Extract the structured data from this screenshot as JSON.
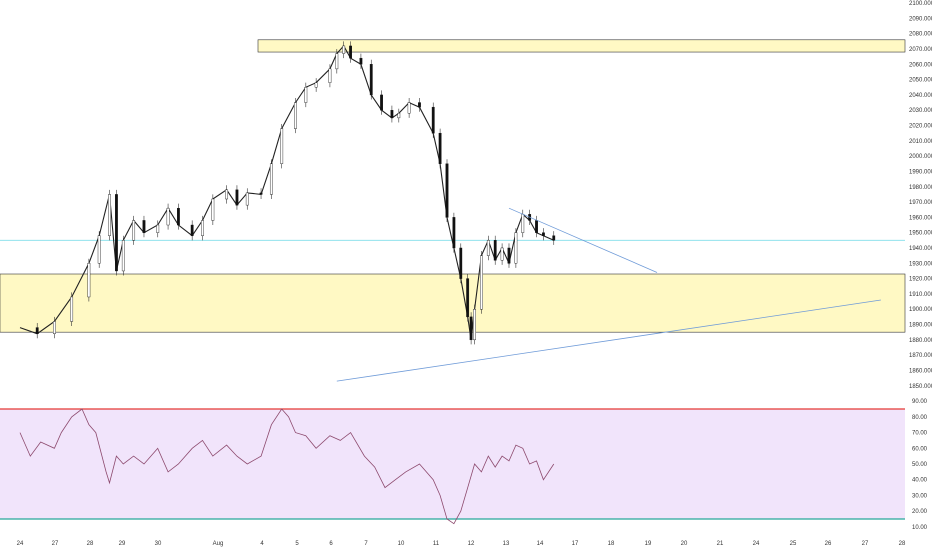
{
  "chart_data": [
    {
      "type": "candlestick",
      "title": "",
      "y_axis": {
        "ylim": [
          1842,
          2102
        ],
        "tick_labels": [
          "2100.000",
          "2090.000",
          "2080.000",
          "2070.000",
          "2060.000",
          "2050.000",
          "2040.000",
          "2030.000",
          "2020.000",
          "2010.000",
          "2000.000",
          "1990.000",
          "1980.000",
          "1970.000",
          "1960.000",
          "1950.000",
          "1940.000",
          "1930.000",
          "1920.000",
          "1910.000",
          "1900.000",
          "1890.000",
          "1880.000",
          "1870.000",
          "1860.000",
          "1850.000"
        ],
        "tick_values": [
          2100,
          2090,
          2080,
          2070,
          2060,
          2050,
          2040,
          2030,
          2020,
          2010,
          2000,
          1990,
          1980,
          1970,
          1960,
          1950,
          1940,
          1930,
          1920,
          1910,
          1900,
          1890,
          1880,
          1870,
          1860,
          1850
        ]
      },
      "x_axis": {
        "tick_labels": [
          "24",
          "27",
          "28",
          "29",
          "30",
          "Aug",
          "4",
          "5",
          "6",
          "7",
          "10",
          "11",
          "12",
          "13",
          "14",
          "17",
          "18",
          "19",
          "20",
          "21",
          "24",
          "25",
          "26",
          "27",
          "28"
        ],
        "tick_index": [
          0,
          2,
          3,
          4,
          5,
          6,
          7,
          8,
          9,
          10,
          11,
          12,
          13,
          14,
          15,
          16,
          17,
          18,
          19,
          20,
          21,
          22,
          23,
          24,
          25
        ]
      },
      "series": [
        {
          "path": [
            [
              0,
              1888
            ],
            [
              0.5,
              1884
            ],
            [
              1,
              1892
            ],
            [
              1.5,
              1908
            ],
            [
              2,
              1930
            ],
            [
              2.3,
              1948
            ],
            [
              2.6,
              1975
            ],
            [
              2.8,
              1925
            ],
            [
              3,
              1945
            ],
            [
              3.3,
              1958
            ],
            [
              3.6,
              1950
            ],
            [
              4,
              1955
            ],
            [
              4.3,
              1966
            ],
            [
              4.6,
              1955
            ],
            [
              5,
              1948
            ],
            [
              5.3,
              1958
            ],
            [
              5.6,
              1972
            ],
            [
              6,
              1978
            ],
            [
              6.3,
              1968
            ],
            [
              6.6,
              1976
            ],
            [
              7,
              1975
            ],
            [
              7.3,
              1995
            ],
            [
              7.6,
              2018
            ],
            [
              8,
              2035
            ],
            [
              8.3,
              2045
            ],
            [
              8.6,
              2048
            ],
            [
              9,
              2057
            ],
            [
              9.2,
              2067
            ],
            [
              9.4,
              2072
            ],
            [
              9.6,
              2064
            ],
            [
              9.9,
              2060
            ],
            [
              10.2,
              2040
            ],
            [
              10.5,
              2030
            ],
            [
              10.8,
              2025
            ],
            [
              11,
              2028
            ],
            [
              11.3,
              2035
            ],
            [
              11.6,
              2032
            ],
            [
              12,
              2015
            ],
            [
              12.2,
              1995
            ],
            [
              12.4,
              1960
            ],
            [
              12.6,
              1940
            ],
            [
              12.8,
              1920
            ],
            [
              13,
              1895
            ],
            [
              13.1,
              1880
            ],
            [
              13.2,
              1900
            ],
            [
              13.4,
              1935
            ],
            [
              13.6,
              1945
            ],
            [
              13.8,
              1932
            ],
            [
              14,
              1940
            ],
            [
              14.2,
              1930
            ],
            [
              14.4,
              1950
            ],
            [
              14.6,
              1962
            ],
            [
              14.8,
              1958
            ],
            [
              15,
              1950
            ],
            [
              15.2,
              1948
            ],
            [
              15.5,
              1945
            ]
          ]
        }
      ],
      "horizontal_lines": [
        {
          "y": 1945
        }
      ],
      "zones": [
        {
          "y_low": 2068,
          "y_high": 2076
        },
        {
          "y_low": 1885,
          "y_high": 1923
        }
      ],
      "trendlines": [
        {
          "from": [
            14.2,
            1966
          ],
          "to": [
            18.5,
            1924
          ]
        },
        {
          "from": [
            9.2,
            1853
          ],
          "to": [
            25,
            1906
          ]
        }
      ]
    },
    {
      "type": "line",
      "title": "",
      "y_axis": {
        "ylim": [
          8,
          92
        ],
        "tick_labels": [
          "90.00",
          "80.00",
          "70.00",
          "60.00",
          "50.00",
          "40.00",
          "30.00",
          "20.00",
          "10.00"
        ],
        "tick_values": [
          90,
          80,
          70,
          60,
          50,
          40,
          30,
          20,
          10
        ]
      },
      "bands": [
        {
          "value": 85,
          "color": "#e53935"
        },
        {
          "value": 15,
          "color": "#26a69a"
        }
      ],
      "band_fill": "#f1e4fb",
      "series": [
        {
          "points": [
            [
              0,
              70
            ],
            [
              0.3,
              55
            ],
            [
              0.6,
              64
            ],
            [
              1,
              60
            ],
            [
              1.2,
              70
            ],
            [
              1.5,
              80
            ],
            [
              1.8,
              85
            ],
            [
              2,
              75
            ],
            [
              2.2,
              70
            ],
            [
              2.5,
              45
            ],
            [
              2.6,
              38
            ],
            [
              2.8,
              55
            ],
            [
              3,
              50
            ],
            [
              3.3,
              55
            ],
            [
              3.6,
              50
            ],
            [
              4,
              60
            ],
            [
              4.3,
              45
            ],
            [
              4.6,
              50
            ],
            [
              5,
              60
            ],
            [
              5.3,
              65
            ],
            [
              5.6,
              55
            ],
            [
              6,
              62
            ],
            [
              6.3,
              55
            ],
            [
              6.6,
              50
            ],
            [
              7,
              55
            ],
            [
              7.3,
              75
            ],
            [
              7.6,
              85
            ],
            [
              7.8,
              80
            ],
            [
              8,
              70
            ],
            [
              8.3,
              68
            ],
            [
              8.6,
              60
            ],
            [
              9,
              68
            ],
            [
              9.3,
              65
            ],
            [
              9.6,
              70
            ],
            [
              10,
              55
            ],
            [
              10.3,
              48
            ],
            [
              10.6,
              35
            ],
            [
              10.9,
              40
            ],
            [
              11.2,
              45
            ],
            [
              11.6,
              50
            ],
            [
              12,
              40
            ],
            [
              12.2,
              30
            ],
            [
              12.4,
              15
            ],
            [
              12.6,
              12
            ],
            [
              12.8,
              20
            ],
            [
              13,
              35
            ],
            [
              13.2,
              50
            ],
            [
              13.4,
              45
            ],
            [
              13.6,
              55
            ],
            [
              13.8,
              48
            ],
            [
              14,
              55
            ],
            [
              14.2,
              52
            ],
            [
              14.4,
              62
            ],
            [
              14.6,
              60
            ],
            [
              14.8,
              50
            ],
            [
              15,
              52
            ],
            [
              15.2,
              40
            ],
            [
              15.5,
              50
            ]
          ]
        }
      ]
    }
  ]
}
